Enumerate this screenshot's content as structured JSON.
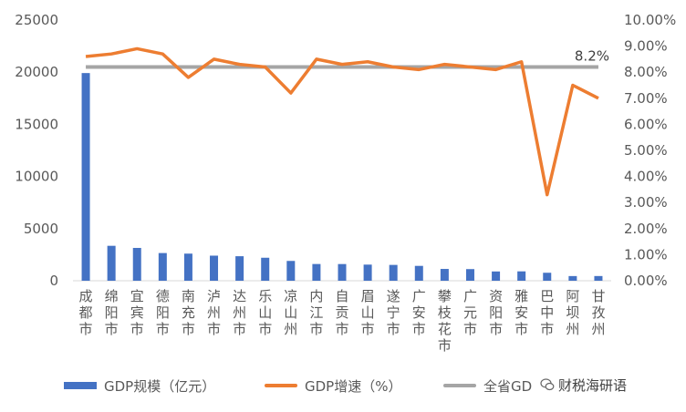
{
  "chart_data": {
    "type": "bar+line",
    "categories": [
      "成都市",
      "绵阳市",
      "宜宾市",
      "德阳市",
      "南充市",
      "泸州市",
      "达州市",
      "乐山市",
      "凉山州",
      "内江市",
      "自贡市",
      "眉山市",
      "遂宁市",
      "广安市",
      "攀枝花市",
      "广元市",
      "资阳市",
      "雅安市",
      "巴中市",
      "阿坝州",
      "甘孜州"
    ],
    "series": [
      {
        "name": "GDP规模（亿元）",
        "type": "bar",
        "axis": "left",
        "values": [
          19917,
          3350,
          3148,
          2656,
          2601,
          2406,
          2352,
          2206,
          1901,
          1605,
          1601,
          1547,
          1519,
          1425,
          1133,
          1117,
          890,
          900,
          766,
          449,
          452
        ]
      },
      {
        "name": "GDP增速（%）",
        "type": "line",
        "axis": "right",
        "values": [
          8.6,
          8.7,
          8.9,
          8.7,
          7.8,
          8.5,
          8.3,
          8.2,
          7.2,
          8.5,
          8.3,
          8.4,
          8.2,
          8.1,
          8.3,
          8.2,
          8.1,
          8.4,
          3.3,
          7.5,
          7.0
        ]
      },
      {
        "name": "全省GDP增速",
        "type": "line",
        "axis": "right",
        "values": [
          8.2,
          8.2,
          8.2,
          8.2,
          8.2,
          8.2,
          8.2,
          8.2,
          8.2,
          8.2,
          8.2,
          8.2,
          8.2,
          8.2,
          8.2,
          8.2,
          8.2,
          8.2,
          8.2,
          8.2,
          8.2
        ]
      }
    ],
    "annotation": "8.2%",
    "y_left": {
      "min": 0,
      "max": 25000,
      "ticks": [
        "0",
        "5000",
        "10000",
        "15000",
        "20000",
        "25000"
      ]
    },
    "y_right": {
      "min": 0,
      "max": 10,
      "ticks": [
        "0.00%",
        "1.00%",
        "2.00%",
        "3.00%",
        "4.00%",
        "5.00%",
        "6.00%",
        "7.00%",
        "8.00%",
        "9.00%",
        "10.00%"
      ]
    },
    "legend_position": "bottom",
    "grid": false
  },
  "colors": {
    "bar": "#4472C4",
    "growth_line": "#ED7D31",
    "province_line": "#A5A5A5",
    "axis": "#D9D9D9"
  },
  "legend": {
    "bar_label": "GDP规模（亿元）",
    "growth_label": "GDP增速（%）",
    "province_label": "全省GD"
  },
  "watermark": {
    "text": "财税海研语"
  }
}
